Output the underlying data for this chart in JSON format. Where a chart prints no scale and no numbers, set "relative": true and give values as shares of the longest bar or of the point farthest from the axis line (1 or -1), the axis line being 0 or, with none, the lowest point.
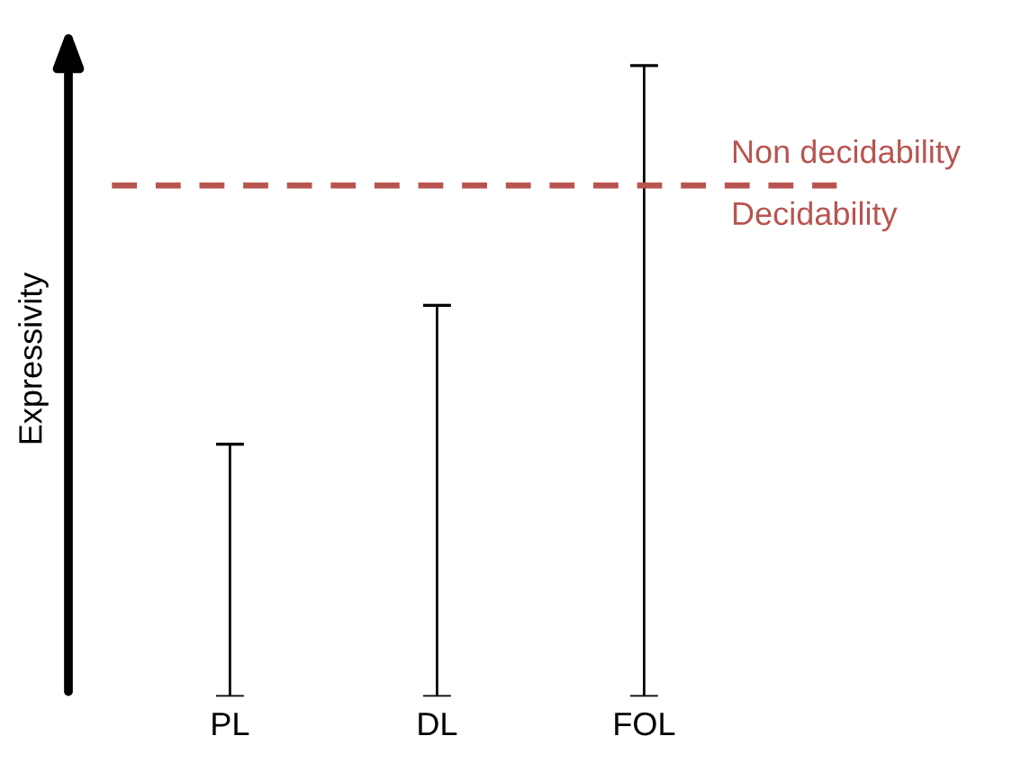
{
  "chart_data": {
    "type": "bar",
    "relative": true,
    "ylabel": "Expressivity",
    "categories": [
      "PL",
      "DL",
      "FOL"
    ],
    "values": [
      0.4,
      0.62,
      1.0
    ],
    "color": "#000000",
    "ref_lines": [
      {
        "axis": "y",
        "value": 0.81,
        "label": "Non decidability",
        "color": "#b85450",
        "line_style": "dashed"
      }
    ],
    "annotations": [
      {
        "text": "Decidability",
        "y": 0.81
      }
    ],
    "grid": false
  }
}
